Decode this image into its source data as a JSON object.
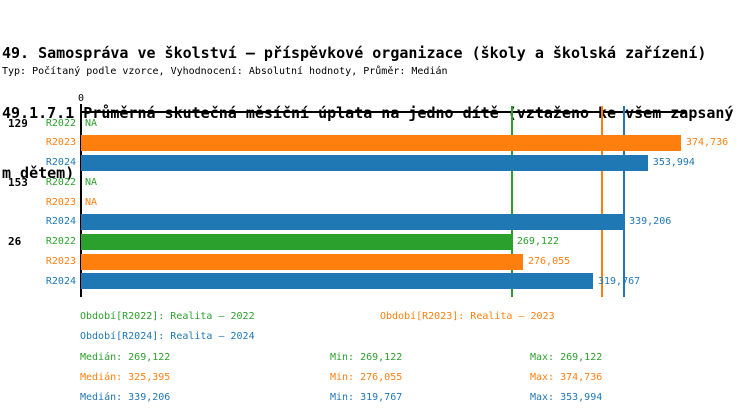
{
  "header": {
    "title_lines": [
      "49. Samospráva ve školství – příspěvkové organizace (školy a školská zařízení)",
      "49.1.7.1 Průměrná skutečná měsíční úplata na jedno dítě (vztaženo ke všem zapsaný",
      "m dětem)"
    ],
    "meta": "Typ: Počítaný podle vzorce, Vyhodnocení: Absolutní hodnoty, Průměr: Medián"
  },
  "colors": {
    "r2022": "#2ca02c",
    "r2023": "#ff7f0e",
    "r2024": "#1f77b4",
    "axis": "#000000"
  },
  "chart_data": {
    "type": "bar",
    "orientation": "horizontal",
    "x_origin_label": "0",
    "na_label": "NA",
    "xlim": [
      0,
      378000
    ],
    "grid": false,
    "groups": [
      {
        "label": "129",
        "rows": [
          {
            "year": "R2022",
            "series": "r2022",
            "value": null,
            "value_label": null
          },
          {
            "year": "R2023",
            "series": "r2023",
            "value": 374736,
            "value_label": "374,736"
          },
          {
            "year": "R2024",
            "series": "r2024",
            "value": 353994,
            "value_label": "353,994"
          }
        ]
      },
      {
        "label": "153",
        "rows": [
          {
            "year": "R2022",
            "series": "r2022",
            "value": null,
            "value_label": null
          },
          {
            "year": "R2023",
            "series": "r2023",
            "value": null,
            "value_label": null
          },
          {
            "year": "R2024",
            "series": "r2024",
            "value": 339206,
            "value_label": "339,206"
          }
        ]
      },
      {
        "label": "26",
        "rows": [
          {
            "year": "R2022",
            "series": "r2022",
            "value": 269122,
            "value_label": "269,122"
          },
          {
            "year": "R2023",
            "series": "r2023",
            "value": 276055,
            "value_label": "276,055"
          },
          {
            "year": "R2024",
            "series": "r2024",
            "value": 319767,
            "value_label": "319,767"
          }
        ]
      }
    ],
    "median_lines": [
      {
        "series": "r2022",
        "value": 269122
      },
      {
        "series": "r2023",
        "value": 325395
      },
      {
        "series": "r2024",
        "value": 339206
      }
    ]
  },
  "legend": {
    "period_entries": [
      {
        "series": "r2022",
        "text": "Období[R2022]: Realita – 2022"
      },
      {
        "series": "r2023",
        "text": "Období[R2023]: Realita – 2023"
      },
      {
        "series": "r2024",
        "text": "Období[R2024]: Realita – 2024"
      }
    ],
    "stats": [
      {
        "series": "r2022",
        "median": "Medián: 269,122",
        "min": "Min: 269,122",
        "max": "Max: 269,122"
      },
      {
        "series": "r2023",
        "median": "Medián: 325,395",
        "min": "Min: 276,055",
        "max": "Max: 374,736"
      },
      {
        "series": "r2024",
        "median": "Medián: 339,206",
        "min": "Min: 319,767",
        "max": "Max: 353,994"
      }
    ]
  }
}
